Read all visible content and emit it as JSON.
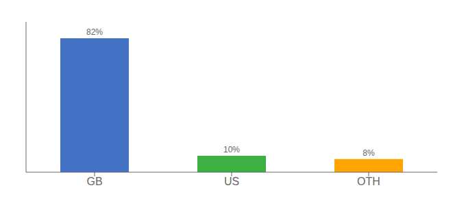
{
  "chart_data": {
    "type": "bar",
    "categories": [
      "GB",
      "US",
      "OTH"
    ],
    "values": [
      82,
      10,
      8
    ],
    "colors": [
      "#4472c4",
      "#3cb043",
      "#ffa500"
    ],
    "data_labels": true,
    "value_labels": [
      "82%",
      "10%",
      "8%"
    ],
    "ylim": [
      0,
      92
    ],
    "tick_labels": "x",
    "grid": false
  }
}
